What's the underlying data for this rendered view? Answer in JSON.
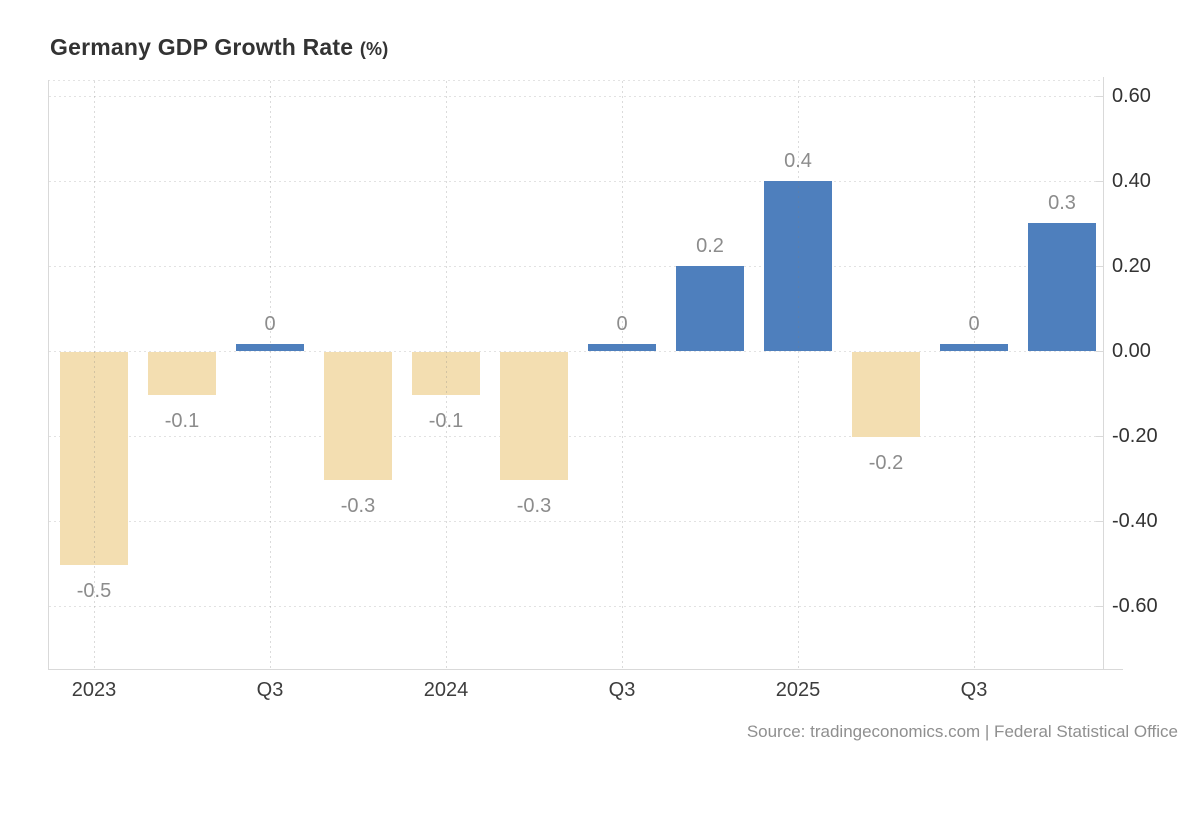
{
  "header": {
    "title": "Germany GDP Growth Rate",
    "title_suffix": "(%)"
  },
  "footer": {
    "source": "Source: tradingeconomics.com | Federal Statistical Office"
  },
  "chart_data": {
    "type": "bar",
    "title": "Germany GDP Growth Rate (%)",
    "xlabel": "",
    "ylabel": "",
    "categories": [
      "2023 Q1",
      "2023 Q2",
      "2023 Q3",
      "2023 Q4",
      "2024 Q1",
      "2024 Q2",
      "2024 Q3",
      "2024 Q4",
      "2025 Q1",
      "2025 Q2",
      "2025 Q3",
      "2025 Q4"
    ],
    "values": [
      -0.5,
      -0.1,
      0,
      -0.3,
      -0.1,
      -0.3,
      0,
      0.2,
      0.4,
      -0.2,
      0,
      0.3
    ],
    "value_labels": [
      "-0.5",
      "-0.1",
      "0",
      "-0.3",
      "-0.1",
      "-0.3",
      "0",
      "0.2",
      "0.4",
      "-0.2",
      "0",
      "0.3"
    ],
    "x_tick_labels": [
      "2023",
      "Q3",
      "2024",
      "Q3",
      "2025",
      "Q3"
    ],
    "x_tick_bar_indexes": [
      0,
      2,
      4,
      6,
      8,
      10
    ],
    "y_tick_labels": [
      "0.60",
      "0.40",
      "0.20",
      "0.00",
      "-0.20",
      "-0.40",
      "-0.60"
    ],
    "y_tick_values": [
      0.6,
      0.4,
      0.2,
      0,
      -0.2,
      -0.4,
      -0.6
    ],
    "ylim": [
      -0.75,
      0.64
    ],
    "grid": "dotted",
    "legend_position": "none",
    "colors": {
      "positive_bar": "#4e7fbd",
      "negative_bar": "#f3deb1",
      "value_label": "#8c8c8c",
      "axis_line": "#d9d9d9",
      "gridline": "#e2e2e2",
      "title": "#333333",
      "tick_label": "#3d3d3d",
      "source": "#8f8f8f"
    }
  }
}
